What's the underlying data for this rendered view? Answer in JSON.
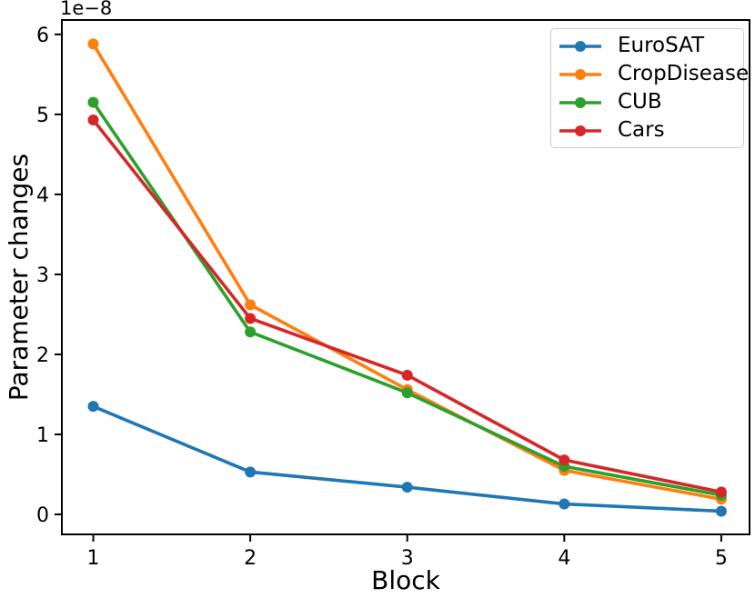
{
  "figure": {
    "background": "#ffffff",
    "axes_color": "#000000",
    "legend_border_color": "#cccccc"
  },
  "chart_data": {
    "type": "line",
    "title": "",
    "xlabel": "Block",
    "ylabel": "Parameter changes",
    "y_offset_text": "1e−8",
    "values_scale": "1e-8",
    "x": [
      1,
      2,
      3,
      4,
      5
    ],
    "x_ticks": [
      "1",
      "2",
      "3",
      "4",
      "5"
    ],
    "y_ticks": [
      "0",
      "1",
      "2",
      "3",
      "4",
      "5",
      "6"
    ],
    "xlim": [
      0.8,
      5.18
    ],
    "ylim": [
      -0.25,
      6.18
    ],
    "grid": false,
    "legend_position": "upper right",
    "marker": "o",
    "series": [
      {
        "name": "EuroSAT",
        "color": "#1f77b4",
        "values": [
          1.35,
          0.53,
          0.34,
          0.13,
          0.04
        ]
      },
      {
        "name": "CropDisease",
        "color": "#ff7f0e",
        "values": [
          5.88,
          2.62,
          1.56,
          0.55,
          0.19
        ]
      },
      {
        "name": "CUB",
        "color": "#2ca02c",
        "values": [
          5.15,
          2.28,
          1.52,
          0.6,
          0.24
        ]
      },
      {
        "name": "Cars",
        "color": "#d62728",
        "values": [
          4.93,
          2.45,
          1.74,
          0.68,
          0.28
        ]
      }
    ]
  }
}
